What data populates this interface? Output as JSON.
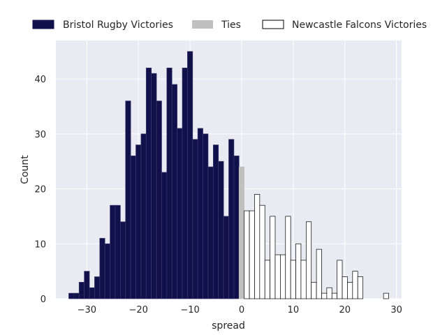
{
  "chart_data": {
    "type": "bar",
    "title": "",
    "xlabel": "spread",
    "ylabel": "Count",
    "xlim": [
      -36,
      31
    ],
    "ylim": [
      0,
      47
    ],
    "grid": true,
    "legend_position": "top",
    "bin_width": 1,
    "x_ticks": [
      -30,
      -20,
      -10,
      0,
      10,
      20,
      30
    ],
    "x_tick_labels": [
      "−30",
      "−20",
      "−10",
      "0",
      "10",
      "20",
      "30"
    ],
    "y_ticks": [
      0,
      10,
      20,
      30,
      40
    ],
    "y_tick_labels": [
      "0",
      "10",
      "20",
      "30",
      "40"
    ],
    "colors": {
      "plot_background": "#eaeaf2",
      "grid": "#ffffff",
      "bristol": "#10104a",
      "ties": "#c0c0c0",
      "newcastle": "#ffffff",
      "newcastle_edge": "#000000"
    },
    "series": [
      {
        "name": "Bristol Rugby Victories",
        "x": [
          -33,
          -32,
          -31,
          -30,
          -29,
          -28,
          -27,
          -26,
          -25,
          -24,
          -23,
          -22,
          -21,
          -20,
          -19,
          -18,
          -17,
          -16,
          -15,
          -14,
          -13,
          -12,
          -11,
          -10,
          -9,
          -8,
          -7,
          -6,
          -5,
          -4,
          -3,
          -2,
          -1
        ],
        "values": [
          1,
          1,
          3,
          5,
          2,
          4,
          11,
          10,
          17,
          17,
          14,
          36,
          26,
          28,
          30,
          42,
          41,
          36,
          23,
          42,
          39,
          31,
          42,
          45,
          29,
          31,
          30,
          24,
          28,
          25,
          15,
          29,
          26
        ]
      },
      {
        "name": "Ties",
        "x": [
          0
        ],
        "values": [
          24
        ]
      },
      {
        "name": "Newcastle Falcons Victories",
        "x": [
          1,
          2,
          3,
          4,
          5,
          6,
          7,
          8,
          9,
          10,
          11,
          12,
          13,
          14,
          15,
          16,
          17,
          18,
          19,
          20,
          21,
          22,
          23,
          24,
          25,
          26,
          27,
          28
        ],
        "values": [
          16,
          16,
          19,
          17,
          7,
          15,
          8,
          8,
          15,
          7,
          10,
          7,
          14,
          3,
          9,
          1,
          2,
          1,
          7,
          4,
          3,
          5,
          4,
          0,
          0,
          0,
          0,
          1
        ]
      }
    ]
  }
}
